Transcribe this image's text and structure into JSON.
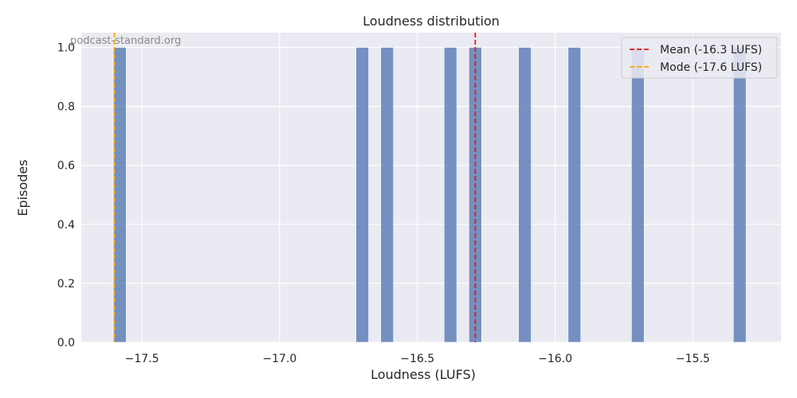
{
  "chart_data": {
    "type": "bar",
    "title": "Loudness distribution",
    "xlabel": "Loudness (LUFS)",
    "ylabel": "Episodes",
    "xlim": [
      -17.72,
      -15.18
    ],
    "ylim": [
      0,
      1.05
    ],
    "xticks": [
      -17.5,
      -17.0,
      -16.5,
      -16.0,
      -15.5
    ],
    "xtick_labels": [
      "−17.5",
      "−17.0",
      "−16.5",
      "−16.0",
      "−15.5"
    ],
    "yticks": [
      0.0,
      0.2,
      0.4,
      0.6,
      0.8,
      1.0
    ],
    "ytick_labels": [
      "0.0",
      "0.2",
      "0.4",
      "0.6",
      "0.8",
      "1.0"
    ],
    "bin_width": 0.046,
    "bars": [
      {
        "x": -17.58,
        "count": 1
      },
      {
        "x": -16.7,
        "count": 1
      },
      {
        "x": -16.61,
        "count": 1
      },
      {
        "x": -16.38,
        "count": 1
      },
      {
        "x": -16.29,
        "count": 1
      },
      {
        "x": -16.11,
        "count": 1
      },
      {
        "x": -15.93,
        "count": 1
      },
      {
        "x": -15.7,
        "count": 1
      },
      {
        "x": -15.33,
        "count": 1
      }
    ],
    "reference_lines": [
      {
        "label": "Mean (-16.3 LUFS)",
        "x": -16.29,
        "color": "#e41a1c"
      },
      {
        "label": "Mode (-17.6 LUFS)",
        "x": -17.6,
        "color": "#ffa500"
      }
    ],
    "bar_color": "#4c72b0",
    "background_color": "#eaeaf2",
    "grid": true,
    "legend_position": "top-right",
    "watermark": "podcast-standard.org"
  }
}
